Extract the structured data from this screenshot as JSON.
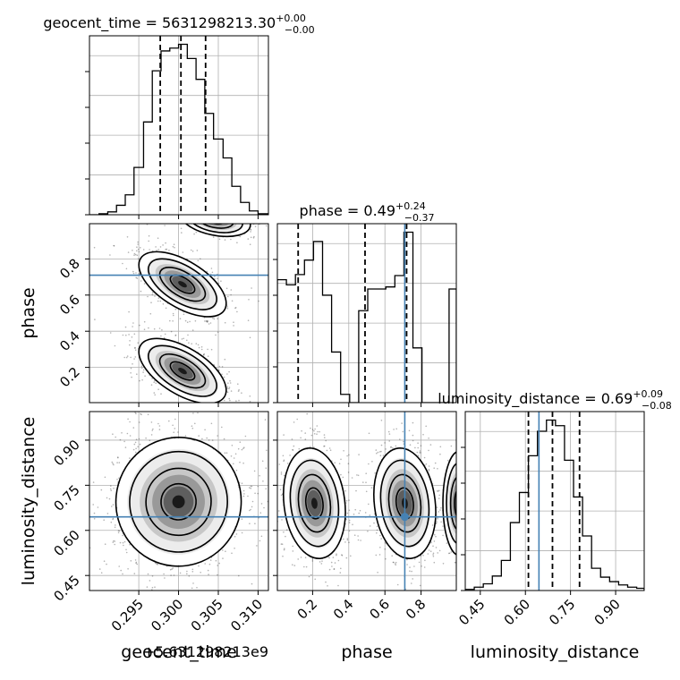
{
  "chart_data": {
    "type": "corner",
    "parameters": [
      "geocent_time",
      "phase",
      "luminosity_distance"
    ],
    "titles": [
      {
        "param": "geocent_time",
        "median": "5631298213.30",
        "plus": "+0.00",
        "minus": "−0.00"
      },
      {
        "param": "phase",
        "median": "0.49",
        "plus": "+0.24",
        "minus": "−0.37"
      },
      {
        "param": "luminosity_distance",
        "median": "0.69",
        "plus": "+0.09",
        "minus": "−0.08"
      }
    ],
    "offset_label": "+5.631298213e9",
    "truths": {
      "geocent_time": null,
      "phase": 0.71,
      "luminosity_distance": 0.645
    },
    "ranges": {
      "geocent_time": [
        0.2888,
        0.3113
      ],
      "phase": [
        0.005,
        0.995
      ],
      "luminosity_distance": [
        0.4,
        0.995
      ]
    },
    "ticks": {
      "geocent_time": {
        "values": [
          0.295,
          0.3,
          0.305,
          0.31
        ],
        "labels": [
          "0.295",
          "0.300",
          "0.305",
          "0.310"
        ]
      },
      "phase_y": {
        "values": [
          0.2,
          0.4,
          0.6,
          0.8
        ],
        "labels": [
          "0.2",
          "0.4",
          "0.6",
          "0.8"
        ]
      },
      "phase_x": {
        "values": [
          0.2,
          0.4,
          0.6,
          0.8
        ],
        "labels": [
          "0.2",
          "0.4",
          "0.6",
          "0.8"
        ]
      },
      "luminosity_distance": {
        "values": [
          0.45,
          0.6,
          0.75,
          0.9
        ],
        "labels": [
          "0.45",
          "0.60",
          "0.75",
          "0.90"
        ]
      }
    },
    "histograms": {
      "geocent_time": {
        "edges": [
          0.2888,
          0.29,
          0.2911,
          0.2922,
          0.2933,
          0.2944,
          0.2956,
          0.2967,
          0.2978,
          0.2989,
          0.3,
          0.3011,
          0.3022,
          0.3033,
          0.3044,
          0.3056,
          0.3067,
          0.3078,
          0.3089,
          0.31,
          0.3113
        ],
        "counts": [
          0.0,
          1.0,
          3.0,
          10.0,
          21.0,
          50.0,
          98.0,
          152.0,
          173.0,
          176.0,
          180.0,
          165.0,
          143.0,
          107.0,
          80.0,
          60.0,
          30.0,
          13.0,
          4.0,
          1.0
        ],
        "quantiles": [
          0.2977,
          0.3003,
          0.3034
        ]
      },
      "phase": {
        "edges": [
          0.005,
          0.055,
          0.105,
          0.155,
          0.205,
          0.255,
          0.305,
          0.355,
          0.405,
          0.455,
          0.505,
          0.555,
          0.605,
          0.655,
          0.705,
          0.755,
          0.805,
          0.855,
          0.905,
          0.955,
          0.995
        ],
        "counts": [
          119,
          114,
          124,
          138,
          156,
          104,
          49,
          8,
          0,
          89,
          110,
          110,
          112,
          123,
          165,
          53,
          0,
          0,
          0,
          110
        ],
        "quantiles": [
          0.12,
          0.49,
          0.72
        ]
      },
      "luminosity_distance": {
        "edges": [
          0.4,
          0.43,
          0.46,
          0.49,
          0.52,
          0.55,
          0.58,
          0.61,
          0.64,
          0.67,
          0.7,
          0.73,
          0.76,
          0.79,
          0.82,
          0.85,
          0.88,
          0.91,
          0.94,
          0.97,
          0.995
        ],
        "counts": [
          1,
          3,
          6,
          13,
          27,
          61,
          88,
          121,
          143,
          153,
          148,
          117,
          84,
          49,
          20,
          12,
          8,
          5,
          3,
          2
        ],
        "quantiles": [
          0.61,
          0.69,
          0.78
        ]
      }
    },
    "panels_2d": [
      {
        "x": "geocent_time",
        "y": "phase",
        "modes": [
          {
            "x": 0.2995,
            "y": 0.72
          },
          {
            "x": 0.2995,
            "y": 0.24
          }
        ]
      },
      {
        "x": "geocent_time",
        "y": "luminosity_distance",
        "modes": [
          {
            "x": 0.3,
            "y": 0.695
          }
        ]
      },
      {
        "x": "phase",
        "y": "luminosity_distance",
        "modes": [
          {
            "x": 0.21,
            "y": 0.69
          },
          {
            "x": 0.71,
            "y": 0.69
          }
        ]
      }
    ]
  }
}
